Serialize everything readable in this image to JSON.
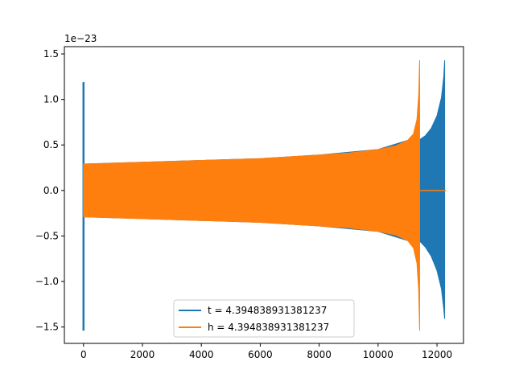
{
  "chart_data": {
    "type": "line",
    "title": "",
    "xlabel": "",
    "ylabel": "",
    "offset_text": "1e−23",
    "xlim": [
      -650,
      12900
    ],
    "ylim": [
      -1.68,
      1.58
    ],
    "xticks": [
      0,
      2000,
      4000,
      6000,
      8000,
      10000,
      12000
    ],
    "xtick_labels": [
      "0",
      "2000",
      "4000",
      "6000",
      "8000",
      "10000",
      "12000"
    ],
    "yticks": [
      -1.5,
      -1.0,
      -0.5,
      0.0,
      0.5,
      1.0,
      1.5
    ],
    "ytick_labels": [
      "−1.5",
      "−1.0",
      "−0.5",
      "0.0",
      "0.5",
      "1.0",
      "1.5"
    ],
    "grid": false,
    "legend_position": "lower center",
    "series": [
      {
        "name": "t = 4.394838931381237",
        "color": "#1f77b4",
        "segments": [
          {
            "kind": "spike",
            "x": 0,
            "ymin": -1.54,
            "ymax": 1.19
          },
          {
            "kind": "envelope",
            "x": [
              0,
              2000,
              4000,
              6000,
              8000,
              10000,
              11000,
              11400
            ],
            "upper": [
              0.29,
              0.31,
              0.33,
              0.35,
              0.39,
              0.45,
              0.55,
              0.59
            ],
            "lower": [
              -0.29,
              -0.31,
              -0.33,
              -0.35,
              -0.39,
              -0.45,
              -0.55,
              -0.59
            ]
          },
          {
            "kind": "envelope",
            "x": [
              11420,
              11600,
              11800,
              12000,
              12150,
              12230,
              12260
            ],
            "upper": [
              0.56,
              0.6,
              0.68,
              0.82,
              1.02,
              1.25,
              1.43
            ],
            "lower": [
              -0.56,
              -0.62,
              -0.72,
              -0.88,
              -1.08,
              -1.3,
              -1.41
            ]
          },
          {
            "kind": "flat",
            "x": [
              12260,
              12300
            ],
            "y": 0.0
          }
        ]
      },
      {
        "name": "h = 4.394838931381237",
        "color": "#ff7f0e",
        "segments": [
          {
            "kind": "envelope",
            "x": [
              0,
              2000,
              4000,
              6000,
              8000,
              9000,
              10000,
              10600,
              11000,
              11200,
              11320,
              11380,
              11410
            ],
            "upper": [
              0.29,
              0.31,
              0.33,
              0.35,
              0.39,
              0.41,
              0.45,
              0.49,
              0.55,
              0.62,
              0.78,
              1.05,
              1.43
            ],
            "lower": [
              -0.29,
              -0.31,
              -0.33,
              -0.35,
              -0.39,
              -0.41,
              -0.45,
              -0.49,
              -0.55,
              -0.63,
              -0.8,
              -1.1,
              -1.54
            ]
          },
          {
            "kind": "flat",
            "x": [
              11410,
              12300
            ],
            "y": 0.0
          }
        ]
      }
    ]
  }
}
